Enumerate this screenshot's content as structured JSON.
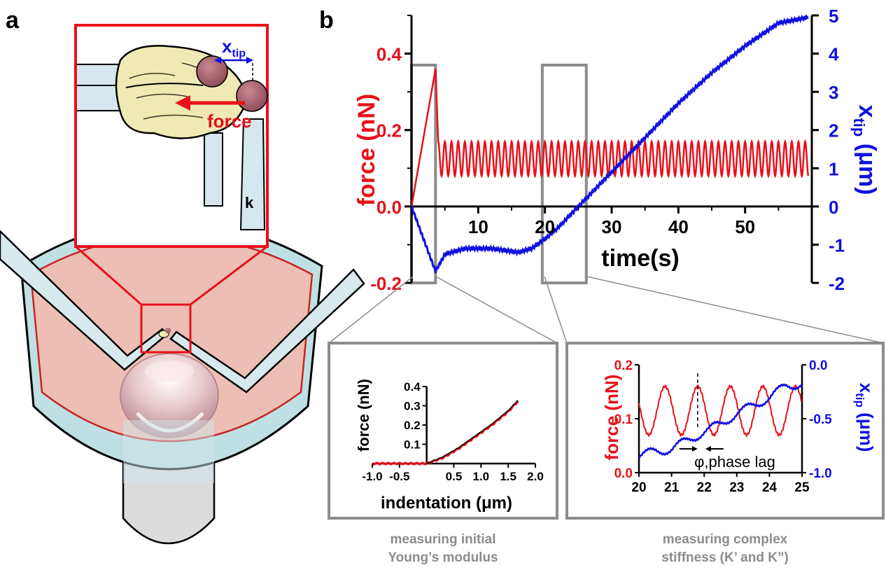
{
  "panels": {
    "a": "a",
    "b": "b"
  },
  "illustration": {
    "xtip_main": "x",
    "xtip_sub": "tip",
    "force_label": "force",
    "k_label": "k",
    "colors": {
      "force_red": "#e8101a",
      "xtip_blue": "#1010e0",
      "cell": "#efe9b4",
      "pipette": "#d6e8ee",
      "dish": "#bcdfe2",
      "medium": "#e8b7ad"
    }
  },
  "chart_data": [
    {
      "type": "line",
      "xlabel": "time(s)",
      "ylabel_left": "force (nN)",
      "ylabel_right_main": "x",
      "ylabel_right_sub": "tip",
      "ylabel_right_unit": " (μm)",
      "xlim": [
        0,
        60
      ],
      "ylim_left": [
        -0.2,
        0.5
      ],
      "ylim_right": [
        -2,
        5
      ],
      "x_ticks": [
        10,
        20,
        30,
        40,
        50
      ],
      "y_ticks_left": [
        -0.2,
        0.0,
        0.2,
        0.4
      ],
      "y_ticks_right": [
        -2,
        -1,
        0,
        1,
        2,
        3,
        4,
        5
      ],
      "y_tick_labels_left": [
        "-0.2",
        "0.0",
        "0.2",
        "0.4"
      ],
      "y_tick_labels_right": [
        "-2",
        "-1",
        "0",
        "1",
        "2",
        "3",
        "4",
        "5"
      ],
      "series": [
        {
          "axis": "left",
          "color": "#e8101a",
          "ramp_x": [
            0,
            3.6
          ],
          "ramp_y": [
            0.0,
            0.36
          ],
          "oscillation": {
            "start": 4,
            "end": 59.5,
            "mean": 0.125,
            "amplitude": 0.045,
            "period": 1.0
          }
        },
        {
          "axis": "right",
          "color": "#1010e0",
          "x": [
            0,
            3.6,
            5,
            8,
            12,
            16,
            18,
            20,
            22,
            25,
            30,
            35,
            40,
            45,
            50,
            55,
            59.5
          ],
          "y": [
            0,
            -1.7,
            -1.25,
            -1.1,
            -1.1,
            -1.2,
            -1.1,
            -0.85,
            -0.55,
            0,
            0.9,
            1.8,
            2.7,
            3.5,
            4.2,
            4.8,
            4.95
          ]
        }
      ],
      "highlight_boxes_x": [
        [
          0,
          3.6
        ],
        [
          19.6,
          26.2
        ]
      ]
    },
    {
      "type": "line",
      "xlabel": "indentation (μm)",
      "ylabel": "force (nN)",
      "xlim": [
        -1.0,
        2.0
      ],
      "ylim": [
        0,
        0.4
      ],
      "x_tick_labels": [
        "-1.0",
        "-0.5",
        "0.5",
        "1.0",
        "1.5",
        "2.0"
      ],
      "x_ticks": [
        -1.0,
        -0.5,
        0.5,
        1.0,
        1.5,
        2.0
      ],
      "y_tick_labels": [
        "0.1",
        "0.2",
        "0.3",
        "0.4"
      ],
      "y_ticks": [
        0.1,
        0.2,
        0.3,
        0.4
      ],
      "series": [
        {
          "name": "data",
          "color": "#e8101a",
          "x": [
            -1.0,
            0.0,
            0.3,
            0.6,
            0.9,
            1.2,
            1.5,
            1.7
          ],
          "y": [
            0.0,
            0.0,
            0.03,
            0.08,
            0.14,
            0.2,
            0.27,
            0.33
          ]
        },
        {
          "name": "fit",
          "color": "#000000",
          "x": [
            0.0,
            0.3,
            0.6,
            0.9,
            1.2,
            1.5,
            1.7
          ],
          "y": [
            0.0,
            0.035,
            0.085,
            0.145,
            0.205,
            0.275,
            0.335
          ]
        }
      ]
    },
    {
      "type": "line",
      "xlabel": "",
      "ylabel_left": "force (nN)",
      "ylabel_right_main": "x",
      "ylabel_right_sub": "tip",
      "ylabel_right_unit": " (μm)",
      "xlim": [
        20,
        25
      ],
      "ylim_left": [
        0,
        0.2
      ],
      "ylim_right": [
        -1.0,
        0.0
      ],
      "x_ticks": [
        20,
        21,
        22,
        23,
        24,
        25
      ],
      "x_tick_labels": [
        "20",
        "21",
        "22",
        "23",
        "24",
        "25"
      ],
      "y_ticks_left": [
        0.0,
        0.1,
        0.2
      ],
      "y_tick_labels_left": [
        "0.0",
        "0.1",
        "0.2"
      ],
      "y_ticks_right": [
        -1.0,
        -0.5,
        0.0
      ],
      "y_tick_labels_right": [
        "-1.0",
        "-0.5",
        "0.0"
      ],
      "annotation": "φ,phase lag",
      "series": [
        {
          "axis": "left",
          "color": "#e8101a",
          "oscillation": {
            "start": 20,
            "end": 25,
            "mean": 0.115,
            "amplitude": 0.045,
            "period": 1.0,
            "peak_at": 21.8
          }
        },
        {
          "axis": "right",
          "color": "#1010e0",
          "x": [
            20,
            20.5,
            21,
            21.5,
            22,
            22.5,
            23,
            23.5,
            24,
            24.5,
            25
          ],
          "y": [
            -0.85,
            -0.8,
            -0.78,
            -0.7,
            -0.62,
            -0.55,
            -0.45,
            -0.38,
            -0.3,
            -0.2,
            -0.17
          ]
        }
      ]
    }
  ],
  "captions": {
    "left_line1": "measuring initial",
    "left_line2": "Young’s modulus",
    "right_line1": "measuring complex",
    "right_line2": "stiffness (K’ and K”)"
  }
}
